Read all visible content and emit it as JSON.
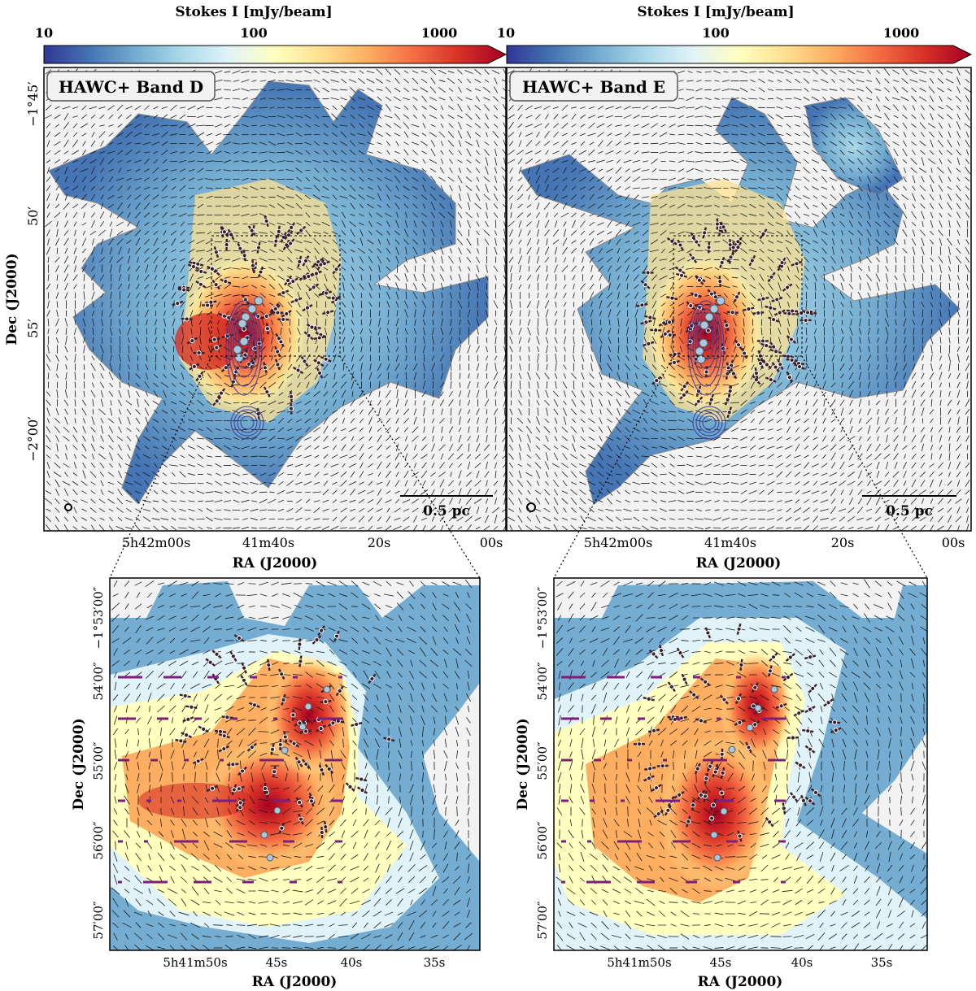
{
  "colorbar": {
    "label": "Stokes I [mJy/beam]",
    "ticks": [
      "10",
      "100",
      "1000"
    ]
  },
  "colors": {
    "colormap": [
      "#313695",
      "#4575b4",
      "#74add1",
      "#abd9e9",
      "#e0f3f8",
      "#ffffbf",
      "#fee090",
      "#fdae61",
      "#f46d43",
      "#d73027",
      "#a50026"
    ],
    "background": "#f2f2f2",
    "vector": "#1a1a1a",
    "vector_overlay": "#3b1f2b",
    "source_marker": "#a6c8e0",
    "contour": "#3b3b9a",
    "scale_marker": "#7b1f7a"
  },
  "panels": [
    {
      "id": "band-d",
      "title": "HAWC+ Band D",
      "scalebar": "0.5 pc",
      "yticks": [
        "−1°45′",
        "50′",
        "55′",
        "−2°00′"
      ],
      "xticks": [
        "5h42m00s",
        "41m40s",
        "20s",
        "00s"
      ],
      "xlabel": "RA (J2000)",
      "ylabel": "Dec (J2000)"
    },
    {
      "id": "band-e",
      "title": "HAWC+ Band E",
      "scalebar": "0.5 pc",
      "xticks": [
        "5h42m00s",
        "41m40s",
        "20s",
        "00s"
      ],
      "xlabel": "RA (J2000)"
    }
  ],
  "zooms": [
    {
      "id": "zoom-d",
      "yticks": [
        "−1°53′00″",
        "54′00″",
        "55′00″",
        "56′00″",
        "57′00″"
      ],
      "xticks": [
        "5h41m50s",
        "45s",
        "40s",
        "35s"
      ],
      "xlabel": "RA (J2000)",
      "ylabel": "Dec (J2000)"
    },
    {
      "id": "zoom-e",
      "yticks": [
        "−1°53′00″",
        "54′00″",
        "55′00″",
        "56′00″",
        "57′00″"
      ],
      "xticks": [
        "5h41m50s",
        "45s",
        "40s",
        "35s"
      ],
      "xlabel": "RA (J2000)",
      "ylabel": "Dec (J2000)"
    }
  ]
}
